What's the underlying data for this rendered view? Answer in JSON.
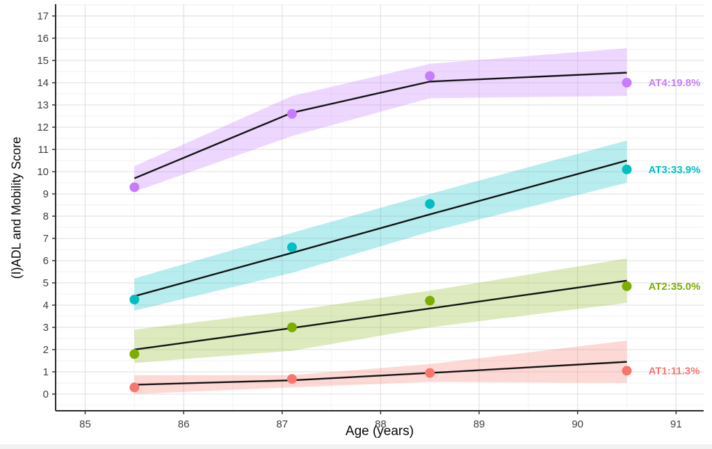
{
  "chart_data": {
    "type": "line",
    "title": "",
    "x_axis": {
      "title": "Age (years)",
      "ticks": [
        85,
        86,
        87,
        88,
        89,
        90,
        91
      ],
      "range": [
        84.7,
        91.28
      ],
      "minor_step": 0.5
    },
    "y_axis": {
      "title": "(I)ADL and Mobility Score",
      "ticks": [
        0,
        1,
        2,
        3,
        4,
        5,
        6,
        7,
        8,
        9,
        10,
        11,
        12,
        13,
        14,
        15,
        16,
        17
      ],
      "range": [
        -0.75,
        17.53
      ],
      "minor_step": 0.5
    },
    "grid": {
      "major_color": "#e4e4e4",
      "minor_color": "#f2f2f2",
      "grid_on": true
    },
    "axis_line_color": "#262626",
    "tick_color": "#333333",
    "tick_label_color": "#3d3d3d",
    "line_color": "#141414",
    "legend_position": "right-inline-labels",
    "label_x": 90.72,
    "series": [
      {
        "name": "AT4",
        "label": "AT4:19.8%",
        "color": "#C77CFF",
        "fill": "rgba(199,124,255,0.30)",
        "x": [
          85.5,
          87.1,
          88.5,
          90.5
        ],
        "line": [
          9.7,
          12.65,
          14.05,
          14.45
        ],
        "points": [
          9.3,
          12.6,
          14.3,
          14.0
        ],
        "lower": [
          9.1,
          11.6,
          13.3,
          13.4
        ],
        "upper": [
          10.25,
          13.4,
          14.85,
          15.55
        ]
      },
      {
        "name": "AT3",
        "label": "AT3:33.9%",
        "color": "#00BFC4",
        "fill": "rgba(0,191,196,0.28)",
        "x": [
          85.5,
          87.1,
          88.5,
          90.5
        ],
        "line": [
          4.4,
          6.35,
          8.08,
          10.5
        ],
        "points": [
          4.25,
          6.6,
          8.55,
          10.1
        ],
        "lower": [
          3.75,
          5.45,
          7.3,
          9.5
        ],
        "upper": [
          5.2,
          7.25,
          9.0,
          11.4
        ]
      },
      {
        "name": "AT2",
        "label": "AT2:35.0%",
        "color": "#7CAE00",
        "fill": "rgba(124,174,0,0.26)",
        "x": [
          85.5,
          87.1,
          88.5,
          90.5
        ],
        "line": [
          2.0,
          2.97,
          3.85,
          5.1
        ],
        "points": [
          1.8,
          3.0,
          4.2,
          4.85
        ],
        "lower": [
          1.4,
          1.95,
          3.0,
          4.1
        ],
        "upper": [
          2.9,
          3.75,
          4.65,
          6.1
        ]
      },
      {
        "name": "AT1",
        "label": "AT1:11.3%",
        "color": "#F8766D",
        "fill": "rgba(248,118,109,0.28)",
        "x": [
          85.5,
          87.1,
          88.5,
          90.5
        ],
        "line": [
          0.42,
          0.62,
          0.95,
          1.45
        ],
        "points": [
          0.3,
          0.68,
          0.95,
          1.05
        ],
        "lower": [
          0.0,
          0.3,
          0.55,
          0.5
        ],
        "upper": [
          0.85,
          0.85,
          1.35,
          2.4
        ]
      }
    ]
  }
}
